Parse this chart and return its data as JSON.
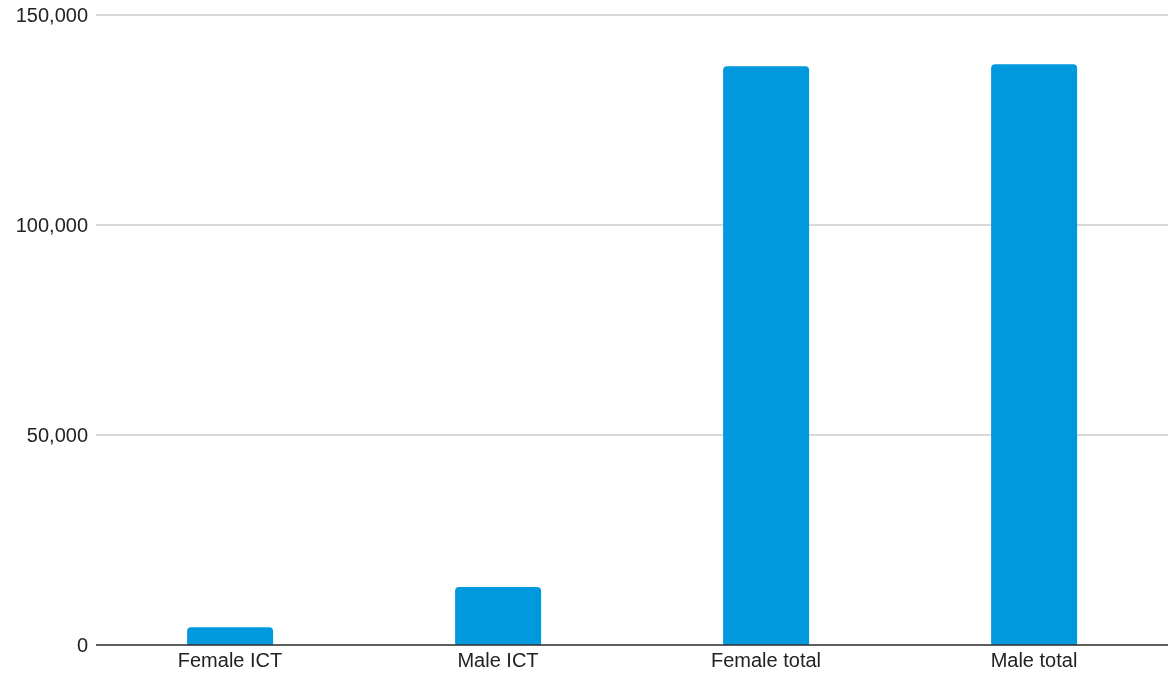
{
  "chart_data": {
    "type": "bar",
    "categories": [
      "Female ICT",
      "Male ICT",
      "Female total",
      "Male total"
    ],
    "values": [
      4200,
      13800,
      137800,
      138300
    ],
    "color": "#0099dd",
    "ylim": [
      0,
      150000
    ],
    "yticks": [
      {
        "value": 0,
        "label": "0"
      },
      {
        "value": 50000,
        "label": "50,000"
      },
      {
        "value": 100000,
        "label": "100,000"
      },
      {
        "value": 150000,
        "label": "150,000"
      }
    ],
    "grid": "y"
  }
}
